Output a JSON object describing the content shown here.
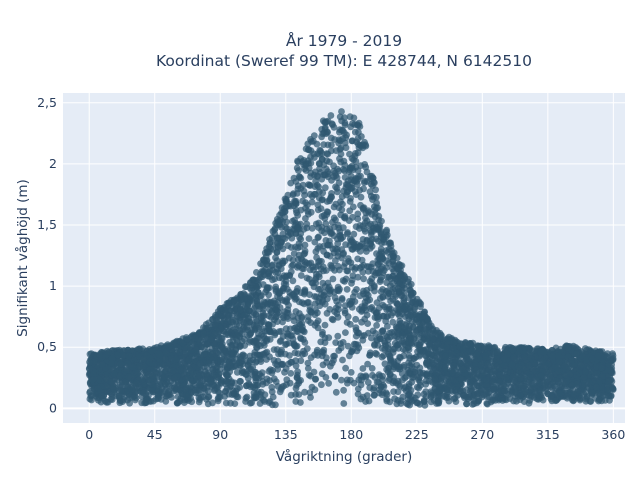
{
  "chart_data": {
    "type": "scatter",
    "title": "År 1979 - 2019",
    "subtitle": "Koordinat (Sweref 99 TM): E 428744, N 6142510",
    "xlabel": "Vågriktning (grader)",
    "ylabel": "Signifikant våghöjd (m)",
    "xlim": [
      -18,
      368
    ],
    "ylim": [
      -0.12,
      2.58
    ],
    "x_ticks": [
      0,
      45,
      90,
      135,
      180,
      225,
      270,
      315,
      360
    ],
    "x_tick_labels": [
      "0",
      "45",
      "90",
      "135",
      "180",
      "225",
      "270",
      "315",
      "360"
    ],
    "y_ticks": [
      0,
      0.5,
      1,
      1.5,
      2,
      2.5
    ],
    "y_tick_labels": [
      "0",
      "0,5",
      "1",
      "1,5",
      "2",
      "2,5"
    ],
    "grid": true,
    "marker_color": "#2f5770",
    "plot_background": "#e5ecf6",
    "series": [
      {
        "envelope": {
          "x": [
            0,
            20,
            45,
            60,
            75,
            90,
            105,
            120,
            130,
            140,
            150,
            160,
            165,
            170,
            175,
            180,
            185,
            190,
            195,
            200,
            210,
            220,
            230,
            240,
            255,
            270,
            285,
            300,
            315,
            330,
            345,
            360
          ],
          "y_max": [
            0.45,
            0.48,
            0.5,
            0.55,
            0.62,
            0.82,
            0.95,
            1.25,
            1.6,
            1.95,
            2.2,
            2.35,
            2.4,
            2.45,
            2.42,
            2.4,
            2.35,
            2.15,
            1.9,
            1.6,
            1.28,
            1.05,
            0.8,
            0.62,
            0.55,
            0.52,
            0.5,
            0.5,
            0.48,
            0.52,
            0.48,
            0.45
          ],
          "y_min": [
            0.05,
            0.04,
            0.04,
            0.03,
            0.03,
            0.03,
            0.02,
            0.02,
            0.02,
            0.02,
            0.02,
            0.02,
            0.02,
            0.02,
            0.02,
            0.02,
            0.02,
            0.02,
            0.02,
            0.02,
            0.02,
            0.02,
            0.02,
            0.03,
            0.03,
            0.03,
            0.04,
            0.04,
            0.05,
            0.05,
            0.05,
            0.06
          ]
        }
      }
    ]
  }
}
